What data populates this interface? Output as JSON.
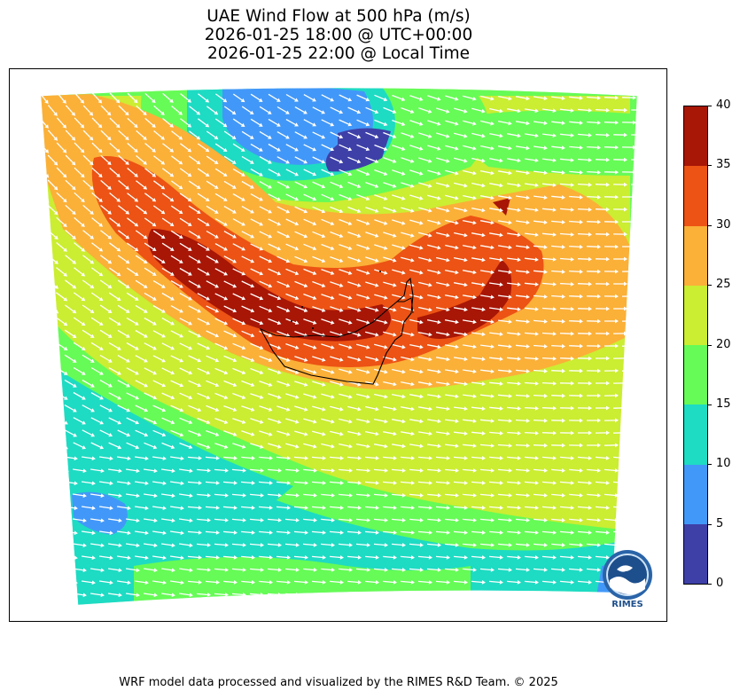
{
  "title": {
    "line1": "UAE Wind Flow at 500 hPa (m/s)",
    "line2": "2026-01-25 18:00 @ UTC+00:00",
    "line3": "2026-01-25 22:00 @ Local Time"
  },
  "colorbar": {
    "levels": [
      {
        "from": 0,
        "to": 5,
        "color": "#3e40a8"
      },
      {
        "from": 5,
        "to": 10,
        "color": "#4298f8"
      },
      {
        "from": 10,
        "to": 15,
        "color": "#1edbc3"
      },
      {
        "from": 15,
        "to": 20,
        "color": "#66fb56"
      },
      {
        "from": 20,
        "to": 25,
        "color": "#cbed32"
      },
      {
        "from": 25,
        "to": 30,
        "color": "#fbb038"
      },
      {
        "from": 30,
        "to": 35,
        "color": "#ec5314"
      },
      {
        "from": 35,
        "to": 40,
        "color": "#a81606"
      }
    ],
    "ticks": [
      "0",
      "5",
      "10",
      "15",
      "20",
      "25",
      "30",
      "35",
      "40"
    ]
  },
  "logo": {
    "text": "RIMES",
    "icon": "rimes-logo-icon"
  },
  "footer": "WRF model data processed and visualized by the RIMES R&D Team. © 2025",
  "map": {
    "vectors": "white-wind-arrows",
    "boundary": "uae-coastline"
  }
}
